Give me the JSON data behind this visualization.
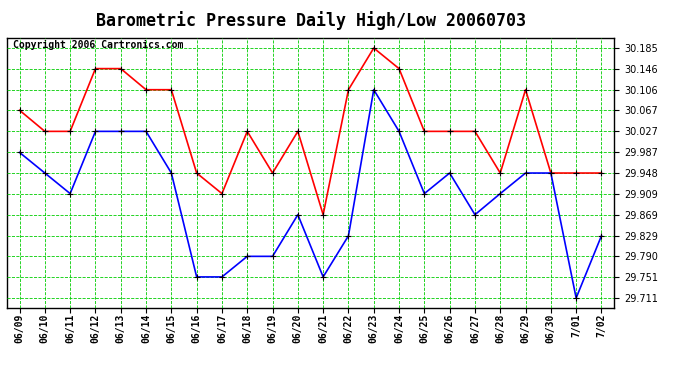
{
  "title": "Barometric Pressure Daily High/Low 20060703",
  "copyright": "Copyright 2006 Cartronics.com",
  "x_labels": [
    "06/09",
    "06/10",
    "06/11",
    "06/12",
    "06/13",
    "06/14",
    "06/15",
    "06/16",
    "06/17",
    "06/18",
    "06/19",
    "06/20",
    "06/21",
    "06/22",
    "06/23",
    "06/24",
    "06/25",
    "06/26",
    "06/27",
    "06/28",
    "06/29",
    "06/30",
    "7/01",
    "7/02"
  ],
  "high_values": [
    30.067,
    30.027,
    30.027,
    30.146,
    30.146,
    30.106,
    30.106,
    29.948,
    29.909,
    30.027,
    29.948,
    30.027,
    29.869,
    30.106,
    30.185,
    30.146,
    30.027,
    30.027,
    30.027,
    29.948,
    30.106,
    29.948,
    29.948,
    29.948
  ],
  "low_values": [
    29.987,
    29.948,
    29.909,
    30.027,
    30.027,
    30.027,
    29.948,
    29.751,
    29.751,
    29.79,
    29.79,
    29.869,
    29.751,
    29.829,
    30.106,
    30.027,
    29.909,
    29.948,
    29.869,
    29.909,
    29.948,
    29.948,
    29.711,
    29.829
  ],
  "high_color": "#FF0000",
  "low_color": "#0000FF",
  "bg_color": "#FFFFFF",
  "plot_bg_color": "#FFFFFF",
  "grid_major_color": "#00CC00",
  "grid_minor_color": "#008800",
  "title_color": "#000000",
  "y_ticks": [
    29.711,
    29.751,
    29.79,
    29.829,
    29.869,
    29.909,
    29.948,
    29.987,
    30.027,
    30.067,
    30.106,
    30.146,
    30.185
  ],
  "ylim": [
    29.693,
    30.205
  ],
  "marker": "s",
  "marker_size": 3,
  "line_width": 1.2,
  "title_fontsize": 12,
  "tick_fontsize": 7,
  "copyright_fontsize": 7
}
